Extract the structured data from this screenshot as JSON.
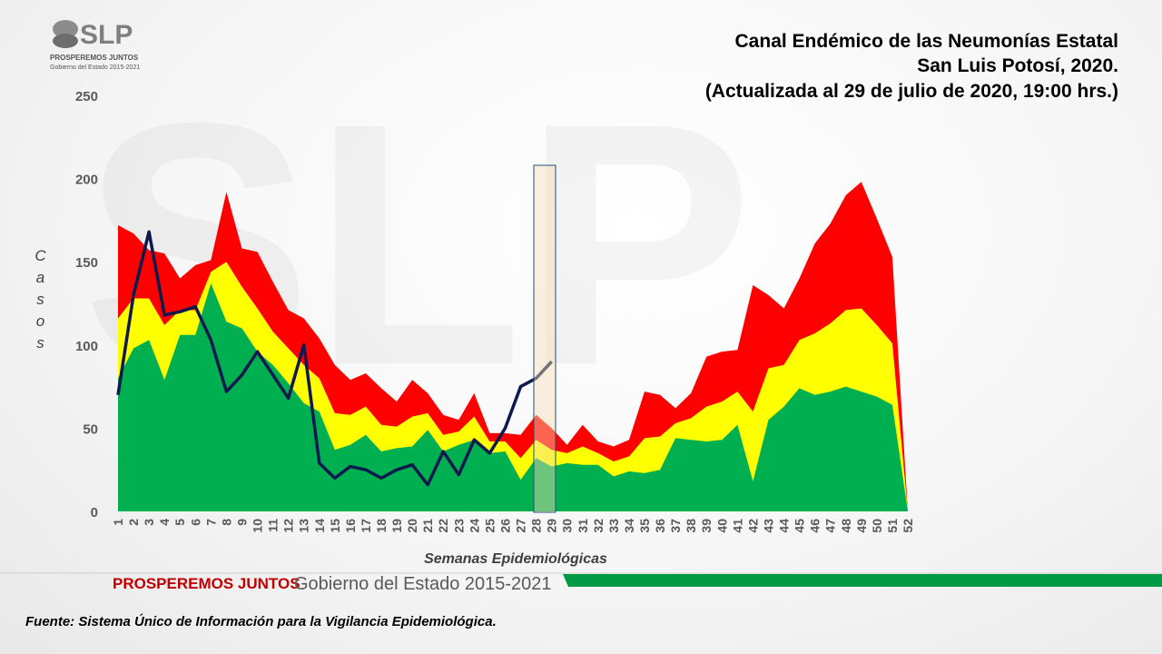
{
  "logo": {
    "mark": "SLP",
    "slogan": "PROSPEREMOS JUNTOS",
    "government": "Gobierno del Estado 2015-2021"
  },
  "banner": {
    "slogan": "PROSPEREMOS JUNTOS",
    "government": "Gobierno del Estado 2015-2021"
  },
  "source": "Fuente: Sistema Único de Información para la Vigilancia Epidemiológica.",
  "chart_data": {
    "type": "area",
    "title": [
      "Canal Endémico de las Neumonías Estatal",
      "San Luis Potosí, 2020.",
      "(Actualizada al 29 de julio de 2020, 19:00 hrs.)"
    ],
    "x_label": "Semanas  Epidemiológicas",
    "y_label": "Casos",
    "categories": [
      "1",
      "2",
      "3",
      "4",
      "5",
      "6",
      "7",
      "8",
      "9",
      "10",
      "11",
      "12",
      "13",
      "14",
      "15",
      "16",
      "17",
      "18",
      "19",
      "20",
      "21",
      "22",
      "23",
      "24",
      "25",
      "26",
      "27",
      "28",
      "29",
      "30",
      "31",
      "32",
      "33",
      "34",
      "35",
      "36",
      "37",
      "38",
      "39",
      "40",
      "41",
      "42",
      "43",
      "44",
      "45",
      "46",
      "47",
      "48",
      "49",
      "50",
      "51",
      "52"
    ],
    "ylim": [
      0,
      250
    ],
    "yticks": [
      0,
      50,
      100,
      150,
      200,
      250
    ],
    "grid": false,
    "series": [
      {
        "color": "#ff0000",
        "kind": "area",
        "values": [
          172,
          167,
          157,
          155,
          140,
          148,
          151,
          192,
          158,
          156,
          138,
          121,
          116,
          104,
          88,
          79,
          83,
          74,
          66,
          79,
          71,
          58,
          55,
          71,
          47,
          47,
          46,
          58,
          50,
          40,
          52,
          42,
          39,
          43,
          72,
          70,
          62,
          71,
          93,
          96,
          97,
          136,
          130,
          122,
          140,
          161,
          173,
          190,
          198,
          176,
          153,
          0
        ]
      },
      {
        "color": "#ffff00",
        "kind": "area",
        "values": [
          116,
          128,
          128,
          112,
          121,
          121,
          144,
          150,
          135,
          122,
          108,
          98,
          88,
          80,
          59,
          58,
          63,
          52,
          51,
          57,
          59,
          46,
          48,
          57,
          42,
          42,
          32,
          43,
          37,
          35,
          39,
          35,
          30,
          33,
          44,
          45,
          53,
          56,
          63,
          66,
          72,
          60,
          86,
          88,
          103,
          107,
          113,
          121,
          122,
          112,
          101,
          0
        ]
      },
      {
        "color": "#00b050",
        "kind": "area",
        "values": [
          80,
          98,
          103,
          79,
          106,
          106,
          137,
          114,
          110,
          96,
          88,
          77,
          65,
          60,
          37,
          40,
          46,
          36,
          38,
          39,
          49,
          36,
          40,
          43,
          35,
          36,
          19,
          32,
          27,
          29,
          28,
          28,
          21,
          24,
          23,
          25,
          44,
          43,
          42,
          43,
          52,
          18,
          55,
          63,
          74,
          70,
          72,
          75,
          72,
          69,
          64,
          0
        ]
      },
      {
        "color": "#0e1a4d",
        "kind": "line",
        "values": [
          70,
          130,
          168,
          118,
          120,
          123,
          103,
          72,
          82,
          96,
          82,
          68,
          100,
          29,
          20,
          27,
          25,
          20,
          25,
          28,
          16,
          36,
          22,
          43,
          35,
          50,
          75,
          80,
          90,
          null,
          null,
          null,
          null,
          null,
          null,
          null,
          null,
          null,
          null,
          null,
          null,
          null,
          null,
          null,
          null,
          null,
          null,
          null,
          null,
          null,
          null,
          null
        ]
      }
    ]
  }
}
